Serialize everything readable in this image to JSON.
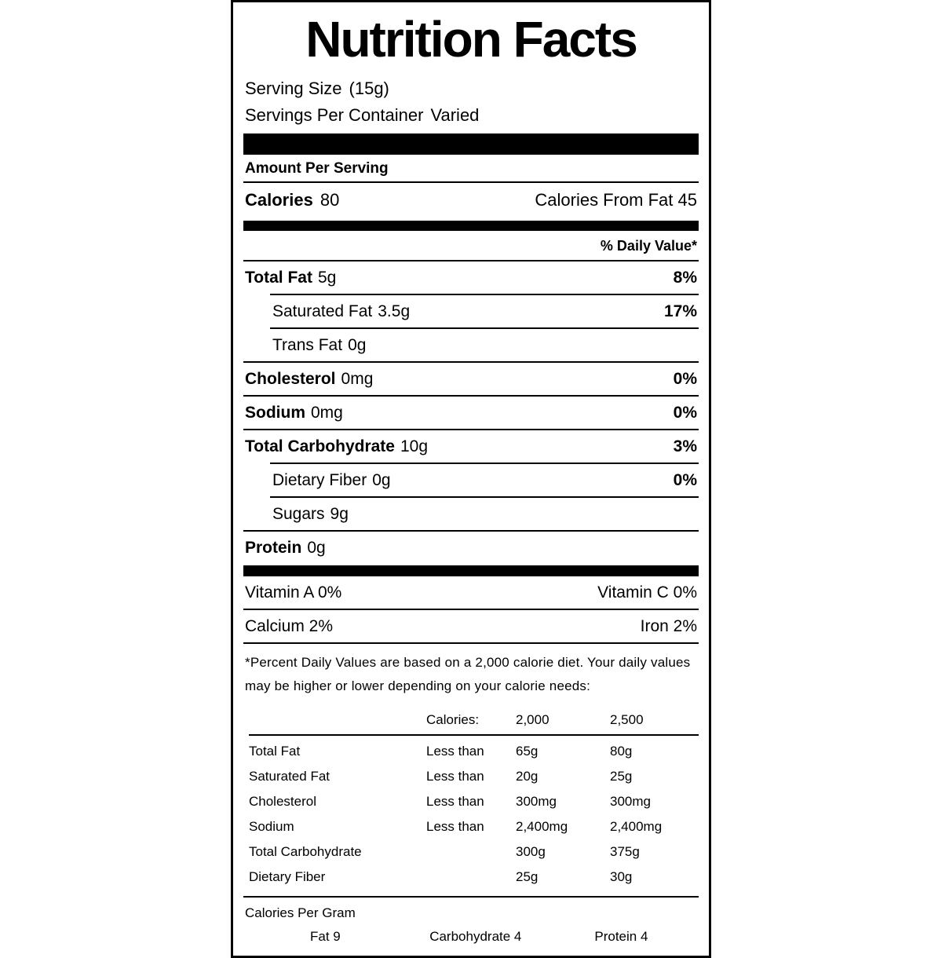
{
  "colors": {
    "text": "#000000",
    "background": "#ffffff"
  },
  "label": {
    "title": "Nutrition Facts",
    "serving": {
      "size_label": "Serving Size",
      "size_value": "(15g)",
      "per_container_label": "Servings Per Container",
      "per_container_value": "Varied"
    },
    "amount_per_serving": "Amount Per Serving",
    "calories_label": "Calories",
    "calories_value": "80",
    "calories_from_fat": "Calories From Fat 45",
    "daily_value_header": "% Daily Value*",
    "nutrients": [
      {
        "name": "Total Fat",
        "amount": "5g",
        "dv": "8%"
      },
      {
        "name": "Saturated Fat",
        "amount": "3.5g",
        "dv": "17%"
      },
      {
        "name": "Trans Fat",
        "amount": "0g",
        "dv": ""
      },
      {
        "name": "Cholesterol",
        "amount": "0mg",
        "dv": "0%"
      },
      {
        "name": "Sodium",
        "amount": "0mg",
        "dv": "0%"
      },
      {
        "name": "Total Carbohydrate",
        "amount": "10g",
        "dv": "3%"
      },
      {
        "name": "Dietary Fiber",
        "amount": "0g",
        "dv": "0%"
      },
      {
        "name": "Sugars",
        "amount": "9g",
        "dv": ""
      },
      {
        "name": "Protein",
        "amount": "0g",
        "dv": ""
      }
    ],
    "vitamins": [
      {
        "left": "Vitamin A 0%",
        "right": "Vitamin C 0%"
      },
      {
        "left": "Calcium 2%",
        "right": "Iron 2%"
      }
    ],
    "footnote": "*Percent Daily Values are based on a 2,000 calorie diet. Your daily values may be higher or lower depending on your calorie needs:",
    "reference_table": {
      "header": {
        "calories": "Calories:",
        "c2000": "2,000",
        "c2500": "2,500"
      },
      "rows": [
        {
          "name": "Total Fat",
          "qualifier": "Less than",
          "v2000": "65g",
          "v2500": "80g"
        },
        {
          "name": "Saturated Fat",
          "qualifier": "Less than",
          "v2000": "20g",
          "v2500": "25g"
        },
        {
          "name": "Cholesterol",
          "qualifier": "Less than",
          "v2000": "300mg",
          "v2500": "300mg"
        },
        {
          "name": "Sodium",
          "qualifier": "Less than",
          "v2000": "2,400mg",
          "v2500": "2,400mg"
        },
        {
          "name": "Total Carbohydrate",
          "qualifier": "",
          "v2000": "300g",
          "v2500": "375g"
        },
        {
          "name": "Dietary Fiber",
          "qualifier": "",
          "v2000": "25g",
          "v2500": "30g"
        }
      ]
    },
    "calories_per_gram": {
      "title": "Calories Per Gram",
      "items": [
        "Fat 9",
        "Carbohydrate 4",
        "Protein 4"
      ]
    }
  }
}
